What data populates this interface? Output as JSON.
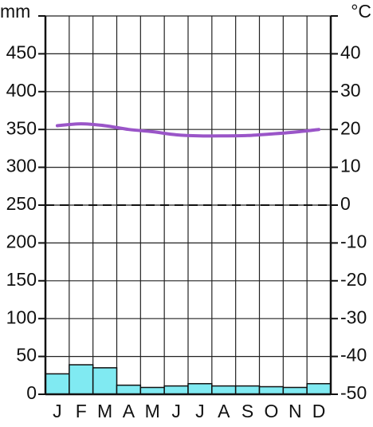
{
  "chart_data": {
    "type": "climograph",
    "y_label": "mm",
    "y2_label": "°C",
    "categories": [
      "J",
      "F",
      "M",
      "A",
      "M",
      "J",
      "J",
      "A",
      "S",
      "O",
      "N",
      "D"
    ],
    "series": [
      {
        "type": "bar",
        "color": "#80eaf2",
        "values": [
          27,
          39,
          35,
          12,
          9,
          11,
          14,
          11,
          11,
          10,
          9,
          14
        ]
      },
      {
        "type": "line",
        "axis": "y2",
        "color": "#9a55c8",
        "values": [
          21,
          21.5,
          21,
          20,
          19.4,
          18.6,
          18.3,
          18.3,
          18.4,
          18.8,
          19.3,
          20
        ]
      }
    ],
    "ylim": [
      0,
      500
    ],
    "yticks": [
      0,
      50,
      100,
      150,
      200,
      250,
      300,
      350,
      400,
      450
    ],
    "y2lim": [
      -50,
      50
    ],
    "y2ticks": [
      -50,
      -40,
      -30,
      -20,
      -10,
      0,
      10,
      20,
      30,
      40
    ],
    "grid": true,
    "zero_line": true
  }
}
